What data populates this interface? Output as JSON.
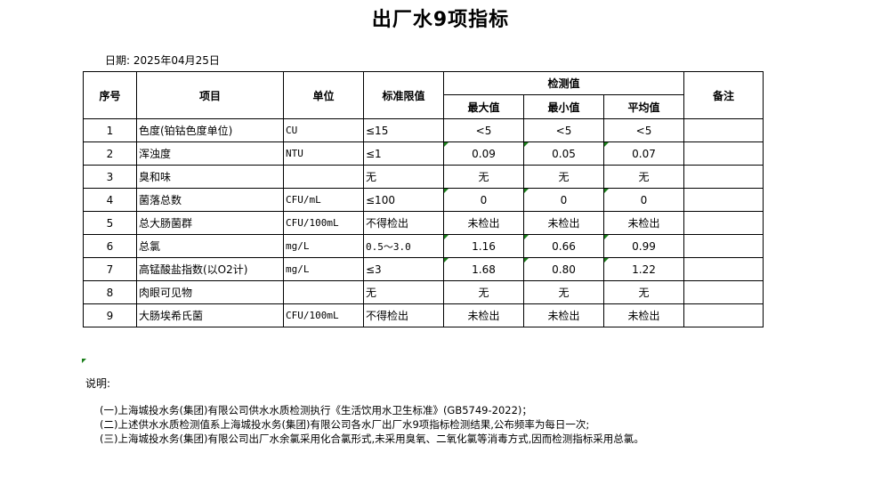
{
  "title": "出厂水9项指标",
  "date_label": "日期: 2025年04月25日",
  "headers": {
    "seq": "序号",
    "item": "项目",
    "unit": "单位",
    "limit": "标准限值",
    "measured": "检测值",
    "max": "最大值",
    "min": "最小值",
    "avg": "平均值",
    "remark": "备注"
  },
  "rows": [
    {
      "seq": "1",
      "item": "色度(铂钴色度单位)",
      "unit": "CU",
      "limit": "≤15",
      "max": "<5",
      "min": "<5",
      "avg": "<5",
      "remark": "",
      "flag": false
    },
    {
      "seq": "2",
      "item": "浑浊度",
      "unit": "NTU",
      "limit": "≤1",
      "max": "0.09",
      "min": "0.05",
      "avg": "0.07",
      "remark": "",
      "flag": true
    },
    {
      "seq": "3",
      "item": "臭和味",
      "unit": "",
      "limit": "无",
      "max": "无",
      "min": "无",
      "avg": "无",
      "remark": "",
      "flag": false
    },
    {
      "seq": "4",
      "item": "菌落总数",
      "unit": "CFU/mL",
      "limit": "≤100",
      "max": "0",
      "min": "0",
      "avg": "0",
      "remark": "",
      "flag": true
    },
    {
      "seq": "5",
      "item": "总大肠菌群",
      "unit": "CFU/100mL",
      "limit": "不得检出",
      "max": "未检出",
      "min": "未检出",
      "avg": "未检出",
      "remark": "",
      "flag": false
    },
    {
      "seq": "6",
      "item": "总氯",
      "unit": "mg/L",
      "limit": "0.5～3.0",
      "max": "1.16",
      "min": "0.66",
      "avg": "0.99",
      "remark": "",
      "flag": true
    },
    {
      "seq": "7",
      "item": "高锰酸盐指数(以O2计)",
      "unit": "mg/L",
      "limit": "≤3",
      "max": "1.68",
      "min": "0.80",
      "avg": "1.22",
      "remark": "",
      "flag": true
    },
    {
      "seq": "8",
      "item": "肉眼可见物",
      "unit": "",
      "limit": "无",
      "max": "无",
      "min": "无",
      "avg": "无",
      "remark": "",
      "flag": false
    },
    {
      "seq": "9",
      "item": "大肠埃希氏菌",
      "unit": "CFU/100mL",
      "limit": "不得检出",
      "max": "未检出",
      "min": "未检出",
      "avg": "未检出",
      "remark": "",
      "flag": false
    }
  ],
  "notes_heading": "说明:",
  "notes": [
    "(一)上海城投水务(集团)有限公司供水水质检测执行《生活饮用水卫生标准》(GB5749-2022)；",
    "(二)上述供水水质检测值系上海城投水务(集团)有限公司各水厂出厂水9项指标检测结果,公布频率为每日一次;",
    "(三)上海城投水务(集团)有限公司出厂水余氯采用化合氯形式,未采用臭氧、二氧化氯等消毒方式,因而检测指标采用总氯。"
  ]
}
